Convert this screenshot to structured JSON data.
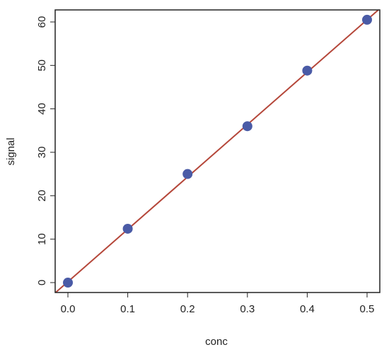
{
  "chart_data": {
    "type": "scatter",
    "x_label": "conc",
    "y_label": "signal",
    "x": [
      0.0,
      0.1,
      0.2,
      0.3,
      0.4,
      0.5
    ],
    "values": [
      0,
      12.4,
      25,
      36,
      48.8,
      60.5
    ],
    "color": "#4a5ba6",
    "fit_line": {
      "intercept": 0.2,
      "slope": 120.6,
      "color": "#b5473a"
    },
    "xlim": [
      -0.0213,
      0.5213
    ],
    "ylim": [
      -2.28,
      62.77
    ],
    "xticks": [
      {
        "value": 0,
        "label": "0.0"
      },
      {
        "value": 0.1,
        "label": "0.1"
      },
      {
        "value": 0.2,
        "label": "0.2"
      },
      {
        "value": 0.3,
        "label": "0.3"
      },
      {
        "value": 0.4,
        "label": "0.4"
      },
      {
        "value": 0.5,
        "label": "0.5"
      }
    ],
    "yticks": [
      0,
      10,
      20,
      30,
      40,
      50,
      60
    ]
  }
}
